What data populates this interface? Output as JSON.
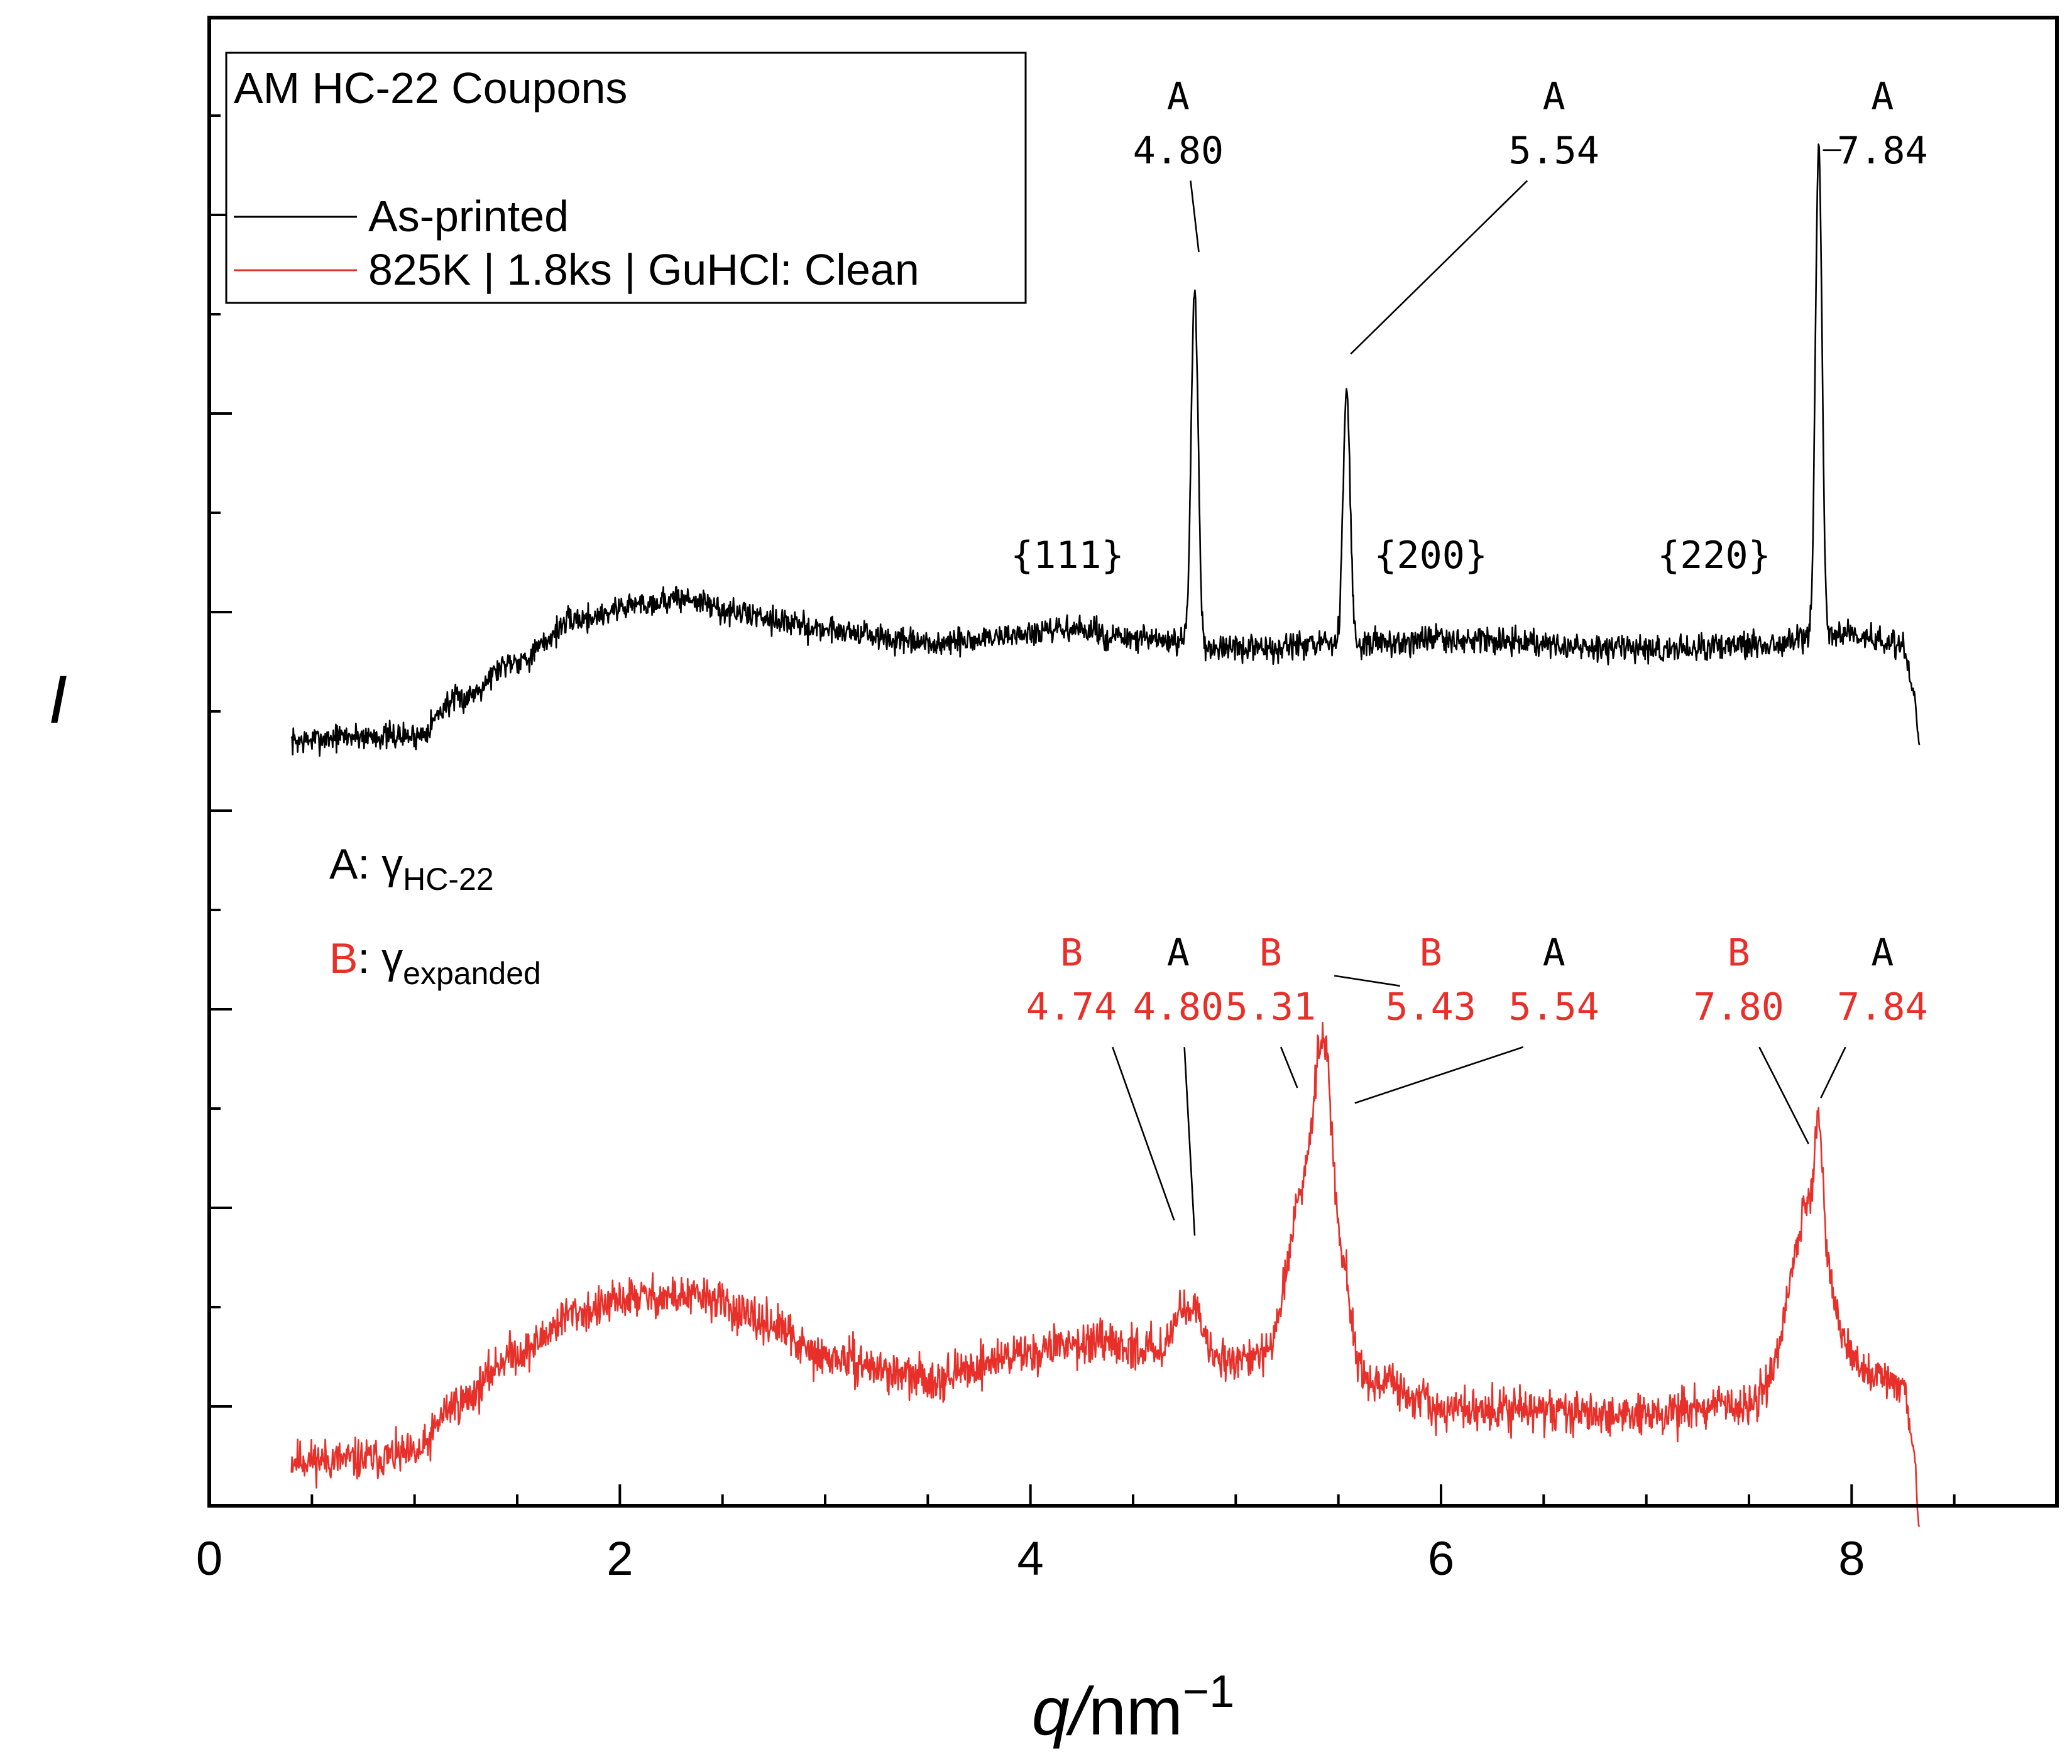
{
  "chart_data": {
    "type": "line",
    "title": "AM HC-22 Coupons",
    "xlabel_symbol": "q",
    "xlabel_unit": "nm",
    "xlabel_exp": "−1",
    "ylabel": "I",
    "xlim": [
      0,
      9
    ],
    "ylim": [
      0,
      14.6
    ],
    "x_ticks": [
      0,
      2,
      4,
      6,
      8
    ],
    "x_tick_labels": [
      "0",
      "2",
      "4",
      "6",
      "8"
    ],
    "y_tick_labels_shown": false,
    "colors": {
      "black": "#000000",
      "red": "#e8302a"
    },
    "legend": {
      "title": "AM HC-22 Coupons",
      "entries": [
        {
          "label": "As-printed",
          "color": "#000000"
        },
        {
          "label": "825K | 1.8ks | GuHCl: Clean",
          "color": "#e8302a"
        }
      ]
    },
    "phase_key": [
      {
        "letter": "A",
        "sep": ": ",
        "symbol": "γ",
        "subscript": "HC-22",
        "color": "#000000"
      },
      {
        "letter": "B",
        "sep": ": ",
        "symbol": "γ",
        "subscript": "expanded",
        "color": "#e8302a"
      }
    ],
    "series": [
      {
        "name": "As-printed",
        "color": "#000000",
        "noise": 0.13,
        "seed": 7,
        "x_range": [
          0.4,
          8.33
        ],
        "baseline_points": [
          [
            0.4,
            7.5
          ],
          [
            0.7,
            7.55
          ],
          [
            1.0,
            7.55
          ],
          [
            1.2,
            7.9
          ],
          [
            1.5,
            8.3
          ],
          [
            1.8,
            8.7
          ],
          [
            2.1,
            8.85
          ],
          [
            2.3,
            8.9
          ],
          [
            2.6,
            8.75
          ],
          [
            3.0,
            8.6
          ],
          [
            3.5,
            8.45
          ],
          [
            4.0,
            8.55
          ],
          [
            4.2,
            8.6
          ],
          [
            4.5,
            8.5
          ],
          [
            5.0,
            8.4
          ],
          [
            5.5,
            8.45
          ],
          [
            6.0,
            8.5
          ],
          [
            7.0,
            8.4
          ],
          [
            7.5,
            8.45
          ],
          [
            8.0,
            8.55
          ],
          [
            8.25,
            8.45
          ],
          [
            8.3,
            8.0
          ],
          [
            8.33,
            7.5
          ]
        ],
        "peaks": [
          {
            "x": 4.8,
            "height": 3.5,
            "width": 0.017
          },
          {
            "x": 5.54,
            "height": 2.5,
            "width": 0.017
          },
          {
            "x": 7.84,
            "height": 4.8,
            "width": 0.016
          }
        ]
      },
      {
        "name": "825K | 1.8ks | GuHCl: Clean",
        "color": "#e8302a",
        "noise": 0.2,
        "seed": 11,
        "x_range": [
          0.4,
          8.33
        ],
        "baseline_points": [
          [
            0.4,
            0.45
          ],
          [
            0.7,
            0.45
          ],
          [
            1.0,
            0.5
          ],
          [
            1.2,
            1.0
          ],
          [
            1.5,
            1.5
          ],
          [
            1.8,
            1.9
          ],
          [
            2.1,
            2.05
          ],
          [
            2.4,
            2.05
          ],
          [
            2.7,
            1.8
          ],
          [
            3.0,
            1.45
          ],
          [
            3.5,
            1.25
          ],
          [
            4.0,
            1.5
          ],
          [
            4.2,
            1.6
          ],
          [
            4.5,
            1.55
          ],
          [
            5.0,
            1.45
          ],
          [
            5.3,
            1.5
          ],
          [
            5.55,
            1.4
          ],
          [
            5.7,
            1.2
          ],
          [
            6.0,
            0.95
          ],
          [
            7.0,
            0.9
          ],
          [
            7.5,
            1.0
          ],
          [
            7.7,
            1.2
          ],
          [
            8.0,
            1.3
          ],
          [
            8.25,
            1.2
          ],
          [
            8.3,
            0.6
          ],
          [
            8.33,
            -0.2
          ]
        ],
        "peaks": [
          {
            "x": 4.74,
            "height": 0.35,
            "width": 0.05
          },
          {
            "x": 4.8,
            "height": 0.3,
            "width": 0.035
          },
          {
            "x": 5.31,
            "height": 1.4,
            "width": 0.06
          },
          {
            "x": 5.43,
            "height": 3.0,
            "width": 0.05
          },
          {
            "x": 5.54,
            "height": 0.6,
            "width": 0.025
          },
          {
            "x": 7.8,
            "height": 1.8,
            "width": 0.09
          },
          {
            "x": 7.84,
            "height": 1.0,
            "width": 0.016
          }
        ]
      }
    ],
    "annotations": [
      {
        "x": 4.8,
        "series": 0,
        "phase": "A",
        "value": "4.80",
        "color": "#000000",
        "label_x": 4.72,
        "label_y": 13.7,
        "line_to": [
          4.82,
          12.3
        ],
        "line_from": [
          4.78,
          13.0
        ]
      },
      {
        "x": 5.54,
        "series": 0,
        "phase": "A",
        "value": "5.54",
        "color": "#000000",
        "label_x": 6.55,
        "label_y": 13.7,
        "line_to": [
          5.56,
          11.3
        ],
        "line_from": [
          6.42,
          13.0
        ]
      },
      {
        "x": 7.84,
        "series": 0,
        "phase": "A",
        "value": "7.84",
        "color": "#000000",
        "label_x": 8.15,
        "label_y": 13.7,
        "line_to": [
          7.86,
          13.3
        ],
        "line_from": [
          7.95,
          13.3
        ]
      },
      {
        "x": 4.74,
        "series": 1,
        "phase": "B",
        "value": "4.74",
        "color": "#e8302a",
        "label_x": 4.2,
        "label_y": 5.3,
        "line_to": [
          4.7,
          2.8
        ],
        "line_from": [
          4.4,
          4.5
        ]
      },
      {
        "x": 4.8,
        "series": 1,
        "phase": "A",
        "value": "4.80",
        "color": "#e8302a",
        "phase_color": "#000000",
        "label_x": 4.72,
        "label_y": 5.3,
        "line_to": [
          4.8,
          2.65
        ],
        "line_from": [
          4.75,
          4.5
        ]
      },
      {
        "x": 5.31,
        "series": 1,
        "phase": "B",
        "value": "5.31",
        "color": "#e8302a",
        "label_x": 5.17,
        "label_y": 5.3,
        "line_to": [
          5.3,
          4.1
        ],
        "line_from": [
          5.22,
          4.5
        ]
      },
      {
        "x": 5.43,
        "series": 1,
        "phase": "B",
        "value": "5.43",
        "color": "#e8302a",
        "label_x": 5.95,
        "label_y": 5.3,
        "line_to": [
          5.48,
          5.2
        ],
        "line_from": [
          5.8,
          5.1
        ]
      },
      {
        "x": 5.54,
        "series": 1,
        "phase": "A",
        "value": "5.54",
        "color": "#e8302a",
        "phase_color": "#000000",
        "label_x": 6.55,
        "label_y": 5.3,
        "line_to": [
          5.58,
          3.95
        ],
        "line_from": [
          6.4,
          4.5
        ]
      },
      {
        "x": 7.8,
        "series": 1,
        "phase": "B",
        "value": "7.80",
        "color": "#e8302a",
        "label_x": 7.45,
        "label_y": 5.3,
        "line_to": [
          7.79,
          3.55
        ],
        "line_from": [
          7.55,
          4.5
        ]
      },
      {
        "x": 7.84,
        "series": 1,
        "phase": "A",
        "value": "7.84",
        "color": "#e8302a",
        "phase_color": "#000000",
        "label_x": 8.15,
        "label_y": 5.3,
        "line_to": [
          7.85,
          4.0
        ],
        "line_from": [
          7.97,
          4.5
        ]
      }
    ],
    "hkl_labels": [
      {
        "text": "{111}",
        "x": 4.18,
        "y": 9.2
      },
      {
        "text": "{200}",
        "x": 5.95,
        "y": 9.2
      },
      {
        "text": "{220}",
        "x": 7.33,
        "y": 9.2
      }
    ]
  }
}
